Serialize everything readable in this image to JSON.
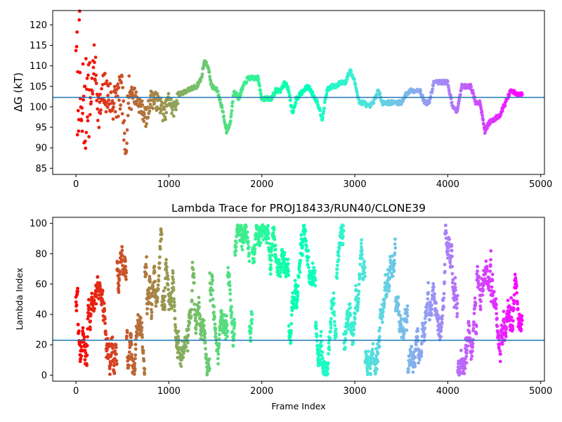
{
  "chart_data": [
    {
      "type": "scatter",
      "title": "",
      "xlabel": "",
      "ylabel": "ΔG (kT)",
      "xlim": [
        -250,
        5040
      ],
      "ylim": [
        83.5,
        123.5
      ],
      "xticks": [
        0,
        1000,
        2000,
        3000,
        4000,
        5000
      ],
      "yticks": [
        85,
        90,
        95,
        100,
        105,
        110,
        115,
        120
      ],
      "xtick_labels": [
        "0",
        "1000",
        "2000",
        "3000",
        "4000",
        "5000"
      ],
      "ytick_labels": [
        "85",
        "90",
        "95",
        "100",
        "105",
        "110",
        "115",
        "120"
      ],
      "hline": 102.3,
      "hline_color": "#1f77b4",
      "colormap": "rainbow (red at frame 0 → violet at last frame)",
      "grid": false,
      "trace_keypoints": [
        [
          0,
          120
        ],
        [
          20,
          100
        ],
        [
          40,
          112
        ],
        [
          60,
          90
        ],
        [
          80,
          105
        ],
        [
          100,
          95
        ],
        [
          120,
          108
        ],
        [
          150,
          100
        ],
        [
          200,
          111
        ],
        [
          250,
          98
        ],
        [
          300,
          104
        ],
        [
          400,
          101
        ],
        [
          500,
          103
        ],
        [
          530,
          87
        ],
        [
          560,
          102
        ],
        [
          600,
          104
        ],
        [
          700,
          100
        ],
        [
          760,
          97
        ],
        [
          800,
          102
        ],
        [
          900,
          101
        ],
        [
          950,
          98
        ],
        [
          1000,
          102
        ],
        [
          1050,
          99
        ],
        [
          1100,
          103
        ],
        [
          1200,
          104
        ],
        [
          1300,
          105
        ],
        [
          1350,
          107
        ],
        [
          1380,
          111
        ],
        [
          1420,
          110
        ],
        [
          1460,
          105
        ],
        [
          1520,
          104
        ],
        [
          1570,
          100
        ],
        [
          1620,
          94
        ],
        [
          1660,
          96
        ],
        [
          1700,
          104
        ],
        [
          1750,
          102
        ],
        [
          1800,
          105
        ],
        [
          1850,
          107
        ],
        [
          1900,
          107
        ],
        [
          1960,
          107
        ],
        [
          2000,
          102
        ],
        [
          2100,
          102
        ],
        [
          2150,
          104
        ],
        [
          2200,
          104
        ],
        [
          2250,
          106
        ],
        [
          2290,
          104
        ],
        [
          2330,
          98
        ],
        [
          2370,
          102
        ],
        [
          2450,
          104
        ],
        [
          2500,
          105
        ],
        [
          2550,
          103
        ],
        [
          2600,
          101
        ],
        [
          2650,
          97
        ],
        [
          2700,
          104
        ],
        [
          2750,
          105
        ],
        [
          2800,
          105
        ],
        [
          2850,
          106
        ],
        [
          2900,
          106
        ],
        [
          2950,
          109
        ],
        [
          3000,
          106
        ],
        [
          3050,
          101
        ],
        [
          3100,
          101
        ],
        [
          3150,
          100
        ],
        [
          3200,
          101
        ],
        [
          3250,
          104
        ],
        [
          3300,
          101
        ],
        [
          3400,
          101
        ],
        [
          3500,
          101
        ],
        [
          3550,
          103
        ],
        [
          3600,
          104
        ],
        [
          3650,
          104
        ],
        [
          3700,
          104
        ],
        [
          3750,
          101
        ],
        [
          3800,
          101
        ],
        [
          3850,
          106
        ],
        [
          3900,
          106
        ],
        [
          3950,
          106
        ],
        [
          4000,
          106
        ],
        [
          4050,
          100
        ],
        [
          4100,
          99
        ],
        [
          4150,
          105
        ],
        [
          4200,
          105
        ],
        [
          4250,
          105
        ],
        [
          4300,
          101
        ],
        [
          4350,
          101
        ],
        [
          4400,
          94
        ],
        [
          4440,
          96
        ],
        [
          4500,
          97
        ],
        [
          4560,
          98
        ],
        [
          4620,
          101
        ],
        [
          4680,
          104
        ],
        [
          4740,
          103
        ],
        [
          4800,
          103
        ]
      ]
    },
    {
      "type": "scatter",
      "title": "Lambda Trace for PROJ18433/RUN40/CLONE39",
      "xlabel": "Frame Index",
      "ylabel": "Lambda Index",
      "xlim": [
        -250,
        5040
      ],
      "ylim": [
        -4,
        104
      ],
      "xticks": [
        0,
        1000,
        2000,
        3000,
        4000,
        5000
      ],
      "yticks": [
        0,
        20,
        40,
        60,
        80,
        100
      ],
      "xtick_labels": [
        "0",
        "1000",
        "2000",
        "3000",
        "4000",
        "5000"
      ],
      "ytick_labels": [
        "0",
        "20",
        "40",
        "60",
        "80",
        "100"
      ],
      "hline": 23,
      "hline_color": "#1f77b4",
      "colormap": "rainbow (red at frame 0 → violet at last frame)",
      "grid": false,
      "n_frames": 4800,
      "value_range": [
        0,
        99
      ]
    }
  ]
}
